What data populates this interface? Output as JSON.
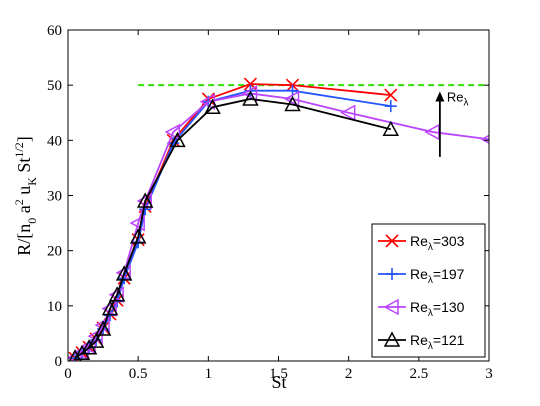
{
  "chart_data": {
    "type": "line",
    "xlabel": "St",
    "ylabel": "R/[n0 a2 uK St1/2]",
    "xlim": [
      0,
      3
    ],
    "ylim": [
      0,
      60
    ],
    "xticks": [
      "0",
      "0.5",
      "1",
      "1.5",
      "2",
      "2.5",
      "3"
    ],
    "yticks": [
      "0",
      "10",
      "20",
      "30",
      "40",
      "50",
      "60"
    ],
    "grid": false,
    "legend_placement": "bottom-right",
    "reference_line": {
      "y": 50,
      "x_range": [
        0.5,
        3
      ],
      "style": "dashed",
      "color": "#33dd00"
    },
    "annotation": {
      "text": "Reλ",
      "arrow": "up",
      "x": 2.65,
      "y_from": 37,
      "y_to": 48.5
    },
    "series": [
      {
        "name": "Reλ=303",
        "color": "#ff0000",
        "marker": "x",
        "x": [
          0.05,
          0.1,
          0.15,
          0.2,
          0.25,
          0.3,
          0.35,
          0.4,
          0.5,
          0.55,
          0.75,
          1.0,
          1.3,
          1.6,
          2.3
        ],
        "y": [
          0.5,
          1.5,
          2.5,
          4,
          6,
          8.5,
          11,
          15,
          22,
          28,
          40,
          47.5,
          50.2,
          50.0,
          48.2
        ]
      },
      {
        "name": "Reλ=197",
        "color": "#2255ff",
        "marker": "+",
        "x": [
          0.05,
          0.1,
          0.15,
          0.2,
          0.25,
          0.3,
          0.35,
          0.4,
          0.5,
          0.55,
          0.75,
          1.0,
          1.3,
          1.6,
          2.3
        ],
        "y": [
          0.5,
          1.4,
          2.4,
          3.8,
          5.8,
          8.3,
          10.8,
          15,
          21.5,
          27.5,
          39.5,
          47,
          49,
          49,
          46.2
        ]
      },
      {
        "name": "Reλ=130",
        "color": "#bb44ff",
        "marker": "triangle-left",
        "x": [
          0.05,
          0.1,
          0.15,
          0.2,
          0.25,
          0.3,
          0.35,
          0.4,
          0.5,
          0.55,
          0.75,
          1.0,
          1.3,
          1.6,
          2.0,
          2.6,
          3.0
        ],
        "y": [
          0.6,
          1.6,
          2.7,
          4.5,
          6.5,
          9.5,
          12,
          16,
          25,
          29,
          41.5,
          47,
          48.5,
          47.5,
          45,
          41.5,
          40.2
        ]
      },
      {
        "name": "Reλ=121",
        "color": "#000000",
        "marker": "triangle-up",
        "x": [
          0.05,
          0.1,
          0.15,
          0.2,
          0.25,
          0.3,
          0.35,
          0.4,
          0.5,
          0.55,
          0.78,
          1.03,
          1.3,
          1.6,
          2.3
        ],
        "y": [
          0.6,
          1.4,
          2.4,
          3.6,
          5.8,
          9.5,
          12,
          15.8,
          22.5,
          29,
          40,
          46,
          47.5,
          46.5,
          42
        ]
      }
    ]
  }
}
